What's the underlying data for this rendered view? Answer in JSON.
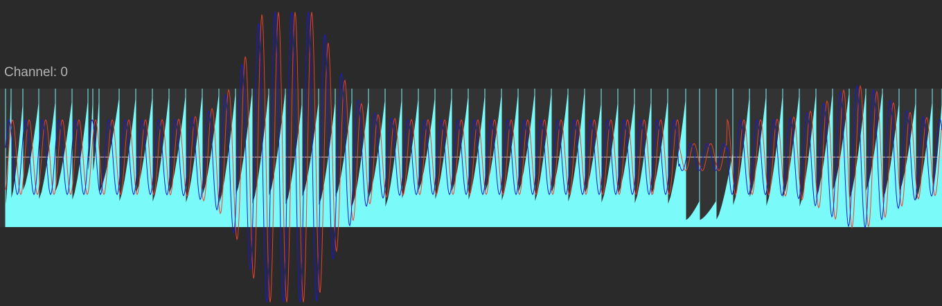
{
  "channel": {
    "label": "Channel: 0"
  },
  "colors": {
    "background": "#2a2a2a",
    "track_background": "#333333",
    "envelope_fill": "#7afaf9",
    "red_trace": "#e8432b",
    "blue_trace": "#1a1ad0",
    "center_line": "#cfcfcf",
    "label_text": "#b4b4b4"
  }
}
